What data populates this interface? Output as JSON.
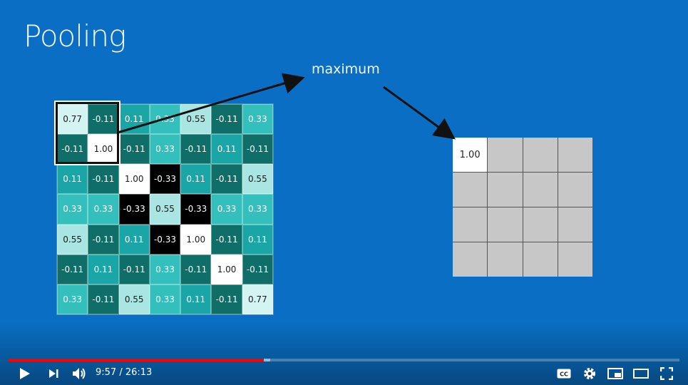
{
  "slide": {
    "title": "Pooling",
    "label": "maximum",
    "input_grid": [
      [
        "0.77",
        "-0.11",
        "0.11",
        "0.33",
        "0.55",
        "-0.11",
        "0.33"
      ],
      [
        "-0.11",
        "1.00",
        "-0.11",
        "0.33",
        "-0.11",
        "0.11",
        "-0.11"
      ],
      [
        "0.11",
        "-0.11",
        "1.00",
        "-0.33",
        "0.11",
        "-0.11",
        "0.55"
      ],
      [
        "0.33",
        "0.33",
        "-0.33",
        "0.55",
        "-0.33",
        "0.33",
        "0.33"
      ],
      [
        "0.55",
        "-0.11",
        "0.11",
        "-0.33",
        "1.00",
        "-0.11",
        "0.11"
      ],
      [
        "-0.11",
        "0.11",
        "-0.11",
        "0.33",
        "-0.11",
        "1.00",
        "-0.11"
      ],
      [
        "0.33",
        "-0.11",
        "0.55",
        "0.33",
        "0.11",
        "-0.11",
        "0.77"
      ]
    ],
    "output_grid": [
      [
        "1.00",
        "",
        "",
        ""
      ],
      [
        "",
        "",
        "",
        ""
      ],
      [
        "",
        "",
        "",
        ""
      ],
      [
        "",
        "",
        "",
        ""
      ]
    ]
  },
  "colors": {
    "background": "#0a6fc4",
    "1.00": "#ffffff",
    "0.77": "#d4f4f2",
    "0.55": "#a9e6e3",
    "0.33": "#33c0bc",
    "0.11": "#1aa6a6",
    "-0.11": "#0f6e67",
    "-0.33": "#000000",
    "progress": "#ff0000"
  },
  "player": {
    "time": "9:57 / 26:13",
    "progress_fraction": 0.38,
    "buffered_fraction": 0.39,
    "icons": [
      "play-icon",
      "next-icon",
      "volume-icon",
      "captions-icon",
      "settings-icon",
      "miniplayer-icon",
      "theater-icon",
      "fullscreen-icon"
    ]
  }
}
